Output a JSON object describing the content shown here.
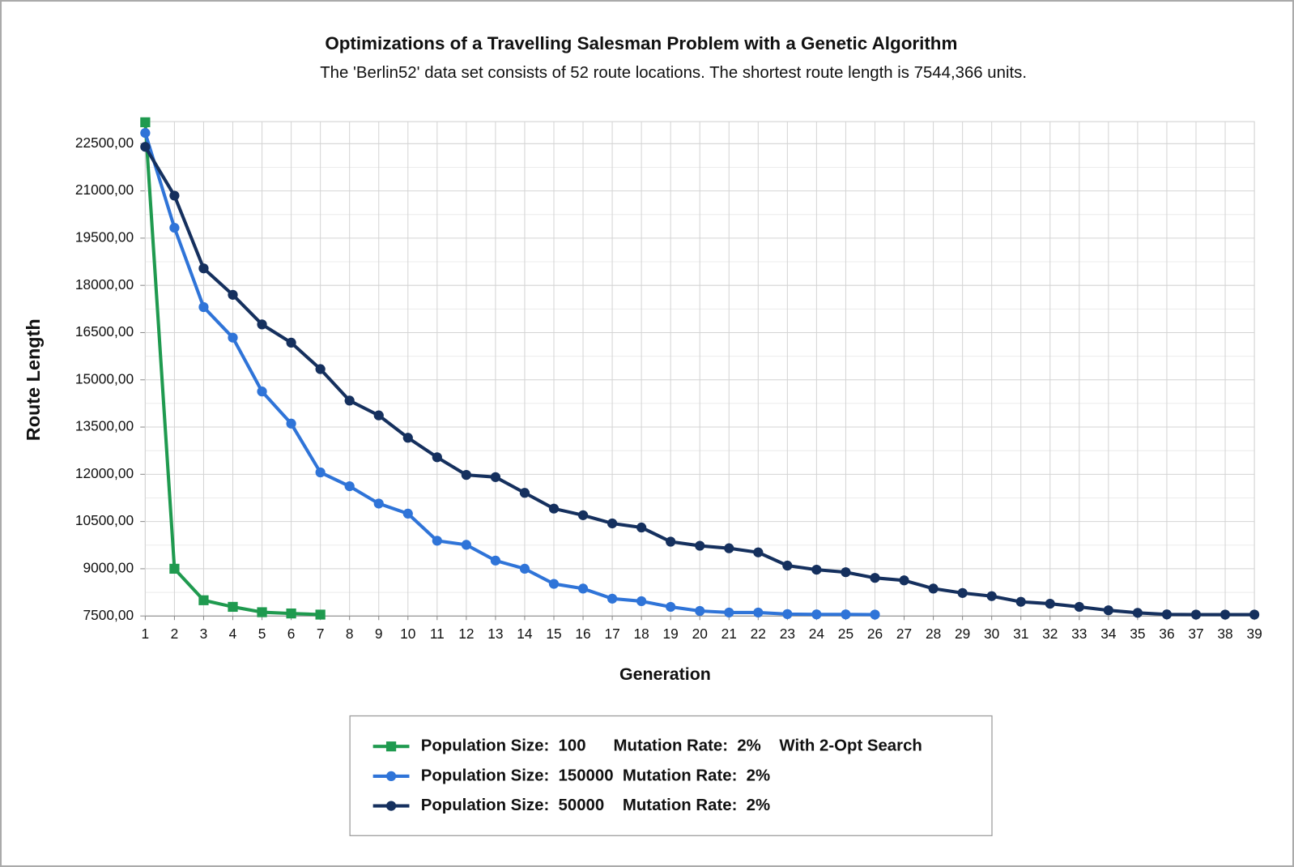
{
  "chart_data": {
    "type": "line",
    "title": "Optimizations of a Travelling Salesman Problem with a Genetic Algorithm",
    "subtitle": "The 'Berlin52' data set consists of 52 route locations. The shortest route length is 7544,366 units.",
    "x_label": "Generation",
    "y_label": "Route Length",
    "x": [
      1,
      2,
      3,
      4,
      5,
      6,
      7,
      8,
      9,
      10,
      11,
      12,
      13,
      14,
      15,
      16,
      17,
      18,
      19,
      20,
      21,
      22,
      23,
      24,
      25,
      26,
      27,
      28,
      29,
      30,
      31,
      32,
      33,
      34,
      35,
      36,
      37,
      38,
      39
    ],
    "xlim": [
      1,
      39
    ],
    "xticks": [
      1,
      2,
      3,
      4,
      5,
      6,
      7,
      8,
      9,
      10,
      11,
      12,
      13,
      14,
      15,
      16,
      17,
      18,
      19,
      20,
      21,
      22,
      23,
      24,
      25,
      26,
      27,
      28,
      29,
      30,
      31,
      32,
      33,
      34,
      35,
      36,
      37,
      38,
      39
    ],
    "ylim": [
      7500,
      23200
    ],
    "yticks": [
      {
        "value": 7500,
        "label": "7500,00"
      },
      {
        "value": 9000,
        "label": "9000,00"
      },
      {
        "value": 10500,
        "label": "10500,00"
      },
      {
        "value": 12000,
        "label": "12000,00"
      },
      {
        "value": 13500,
        "label": "13500,00"
      },
      {
        "value": 15000,
        "label": "15000,00"
      },
      {
        "value": 16500,
        "label": "16500,00"
      },
      {
        "value": 18000,
        "label": "18000,00"
      },
      {
        "value": 19500,
        "label": "19500,00"
      },
      {
        "value": 21000,
        "label": "21000,00"
      },
      {
        "value": 22500,
        "label": "22500,00"
      }
    ],
    "grid": true,
    "legend": "bottom",
    "series": [
      {
        "name": "Population Size:  100      Mutation Rate:  2%    With 2-Opt Search",
        "color": "#1f9a4f",
        "marker": "square",
        "values": [
          23180,
          9000,
          8000,
          7790,
          7620,
          7580,
          7544,
          null,
          null,
          null,
          null,
          null,
          null,
          null,
          null,
          null,
          null,
          null,
          null,
          null,
          null,
          null,
          null,
          null,
          null,
          null,
          null,
          null,
          null,
          null,
          null,
          null,
          null,
          null,
          null,
          null,
          null,
          null,
          null
        ]
      },
      {
        "name": "Population Size:  150000  Mutation Rate:  2%",
        "color": "#2f74d8",
        "marker": "circle",
        "values": [
          22840,
          19830,
          17310,
          16340,
          14630,
          13610,
          12060,
          11620,
          11070,
          10750,
          9890,
          9760,
          9260,
          9000,
          8520,
          8370,
          8050,
          7970,
          7790,
          7660,
          7610,
          7610,
          7560,
          7550,
          7550,
          7544,
          null,
          null,
          null,
          null,
          null,
          null,
          null,
          null,
          null,
          null,
          null,
          null,
          null
        ]
      },
      {
        "name": "Population Size:  50000    Mutation Rate:  2%",
        "color": "#15305e",
        "marker": "circle",
        "values": [
          22400,
          20850,
          18540,
          17700,
          16760,
          16180,
          15340,
          14340,
          13870,
          13160,
          12540,
          11980,
          11910,
          11410,
          10910,
          10700,
          10440,
          10310,
          9860,
          9730,
          9650,
          9520,
          9100,
          8970,
          8890,
          8710,
          8630,
          8370,
          8230,
          8130,
          7950,
          7890,
          7790,
          7680,
          7600,
          7550,
          7544,
          7544,
          7544
        ]
      }
    ]
  }
}
